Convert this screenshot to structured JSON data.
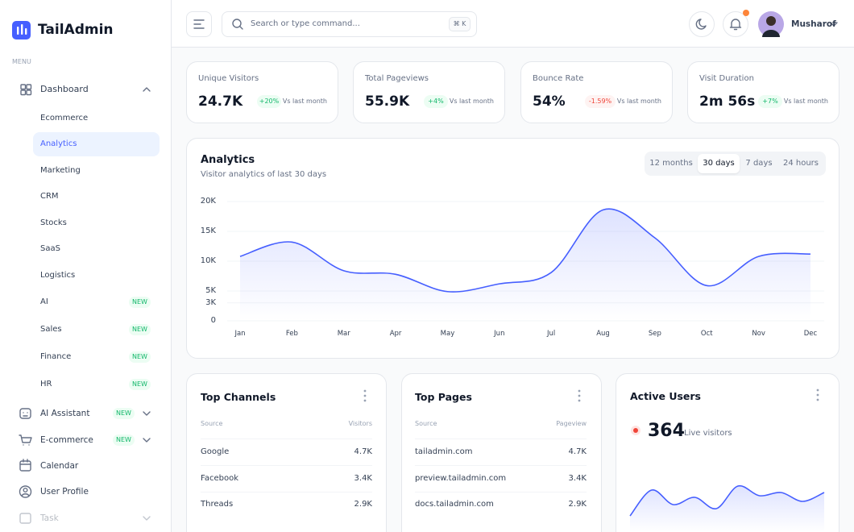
{
  "sidebar": {
    "brand": "TailAdmin",
    "menu_label": "MENU",
    "dashboard": "Dashboard",
    "submenu": [
      {
        "label": "Ecommerce"
      },
      {
        "label": "Analytics",
        "active": true
      },
      {
        "label": "Marketing"
      },
      {
        "label": "CRM"
      },
      {
        "label": "Stocks"
      },
      {
        "label": "SaaS"
      },
      {
        "label": "Logistics"
      },
      {
        "label": "AI",
        "badge": "NEW"
      },
      {
        "label": "Sales",
        "badge": "NEW"
      },
      {
        "label": "Finance",
        "badge": "NEW"
      },
      {
        "label": "HR",
        "badge": "NEW"
      }
    ],
    "items": [
      {
        "label": "AI Assistant",
        "badge": "NEW"
      },
      {
        "label": "E-commerce",
        "badge": "NEW"
      },
      {
        "label": "Calendar"
      },
      {
        "label": "User Profile"
      },
      {
        "label": "Task"
      }
    ]
  },
  "header": {
    "search_placeholder": "Search or type command...",
    "shortcut": "⌘ K",
    "user": "Musharof"
  },
  "stats": [
    {
      "title": "Unique Visitors",
      "value": "24.7K",
      "change": "+20%",
      "trend": "up",
      "note": "Vs last month"
    },
    {
      "title": "Total Pageviews",
      "value": "55.9K",
      "change": "+4%",
      "trend": "up",
      "note": "Vs last month"
    },
    {
      "title": "Bounce Rate",
      "value": "54%",
      "change": "-1.59%",
      "trend": "down",
      "note": "Vs last month"
    },
    {
      "title": "Visit Duration",
      "value": "2m 56s",
      "change": "+7%",
      "trend": "up",
      "note": "Vs last month"
    }
  ],
  "analytics": {
    "title": "Analytics",
    "subtitle": "Visitor analytics of last 30 days",
    "tabs": [
      "12 months",
      "30 days",
      "7 days",
      "24 hours"
    ],
    "active_tab": 1,
    "chart": {
      "type": "area",
      "categories": [
        "Jan",
        "Feb",
        "Mar",
        "Apr",
        "May",
        "Jun",
        "Jul",
        "Aug",
        "Sep",
        "Oct",
        "Nov",
        "Dec"
      ],
      "values": [
        10800,
        13200,
        8400,
        7800,
        4900,
        6200,
        8100,
        18600,
        13900,
        5900,
        10800,
        11200
      ],
      "color": "#465fff",
      "ylim": [
        0,
        20000
      ],
      "yticks": [
        0,
        {
          "value": 3000,
          "label": "3K"
        },
        {
          "value": 5000,
          "label": "5K"
        },
        {
          "value": 10000,
          "label": "10K"
        },
        {
          "value": 15000,
          "label": "15K"
        },
        {
          "value": 20000,
          "label": "20K"
        }
      ],
      "grid": true
    }
  },
  "top_channels": {
    "title": "Top Channels",
    "columns": [
      "Source",
      "Visitors"
    ],
    "rows": [
      [
        "Google",
        "4.7K"
      ],
      [
        "Facebook",
        "3.4K"
      ],
      [
        "Threads",
        "2.9K"
      ]
    ]
  },
  "top_pages": {
    "title": "Top Pages",
    "columns": [
      "Source",
      "Pageview"
    ],
    "rows": [
      [
        "tailadmin.com",
        "4.7K"
      ],
      [
        "preview.tailadmin.com",
        "3.4K"
      ],
      [
        "docs.tailadmin.com",
        "2.9K"
      ]
    ]
  },
  "active_users": {
    "title": "Active Users",
    "count": "364",
    "caption": "Live visitors",
    "sparkline": [
      0,
      32,
      14,
      23,
      9,
      37,
      25,
      29,
      18,
      29
    ]
  }
}
